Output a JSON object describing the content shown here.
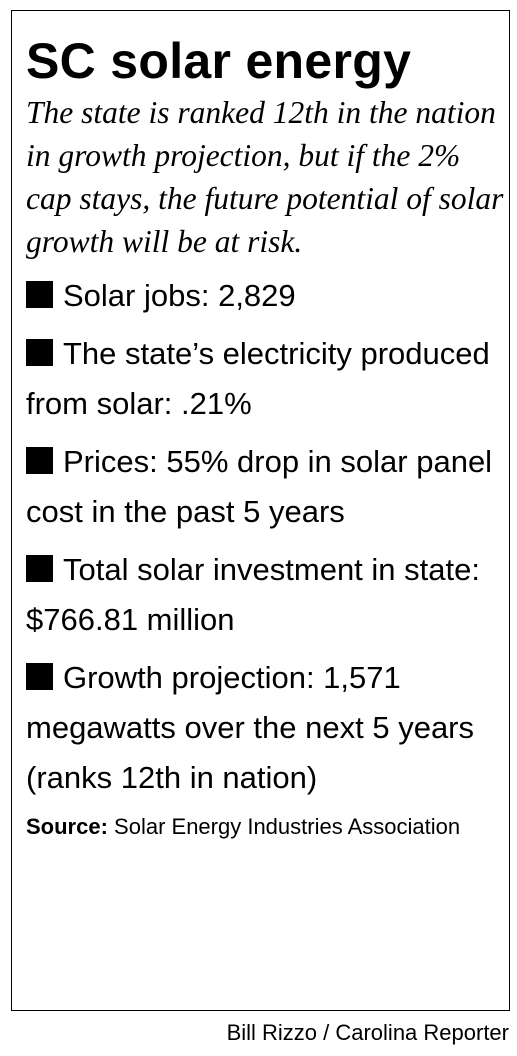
{
  "title": "SC solar energy",
  "subtitle": "The state is ranked 12th in the nation in growth projection, but if the 2% cap stays, the future potential of solar growth will be at risk.",
  "items": [
    "Solar jobs: 2,829",
    "The state’s electricity produced from solar: .21%",
    "Prices: 55% drop in solar panel cost in the past 5 years",
    "Total solar investment in state: $766.81 million",
    "Growth projection: 1,571 megawatts over the next 5 years (ranks 12th in nation)"
  ],
  "source": {
    "label": "Source:",
    "text": "Solar Energy Industries Association"
  },
  "credit": "Bill Rizzo / Carolina Reporter"
}
